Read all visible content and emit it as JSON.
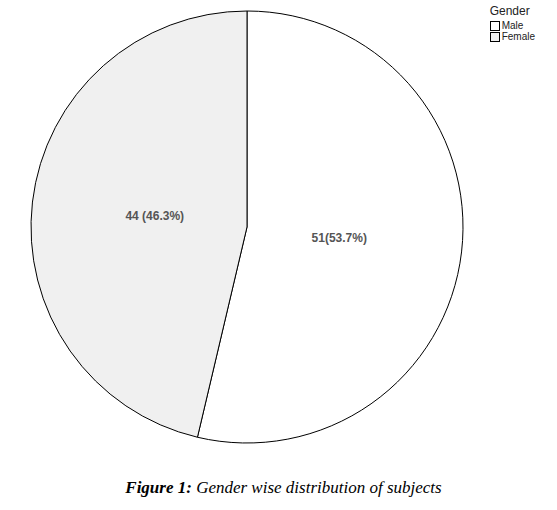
{
  "chart_data": {
    "type": "pie",
    "categories": [
      "Male",
      "Female"
    ],
    "values": [
      51,
      44
    ],
    "value_labels": [
      "51(53.7%)",
      "44 (46.3%)"
    ],
    "colors": [
      "#ffffff",
      "#f0f0f0"
    ],
    "data_labels": true,
    "legend": "top right",
    "legend_title": "Gender",
    "caption_label": "Figure 1:",
    "caption": "Gender wise distribution of subjects"
  }
}
